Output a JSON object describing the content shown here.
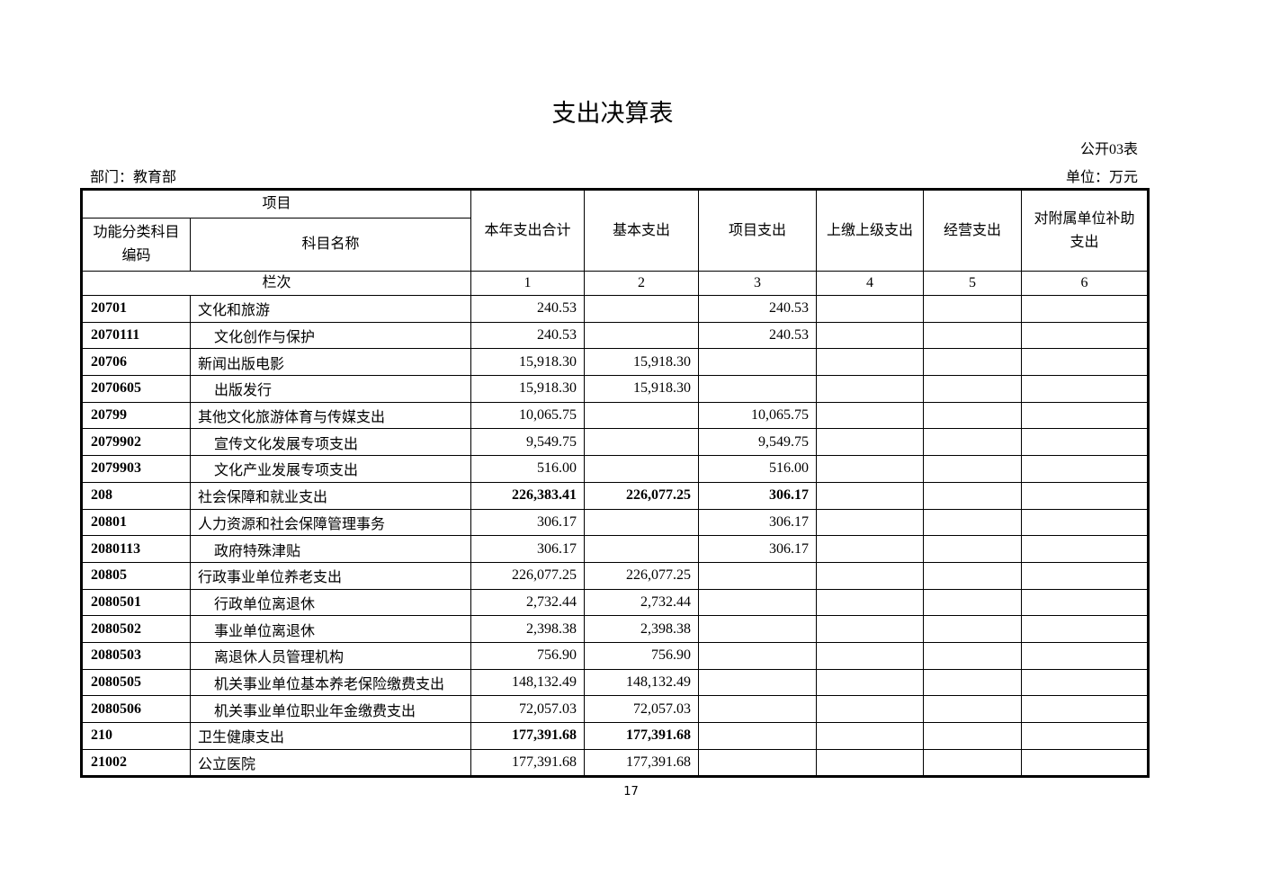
{
  "header": {
    "title": "支出决算表",
    "form_no": "公开03表",
    "department": "部门：教育部",
    "unit": "单位：万元"
  },
  "table": {
    "columns": {
      "item": "项目",
      "code": "功能分类科目编码",
      "name": "科目名称",
      "total": "本年支出合计",
      "basic": "基本支出",
      "project": "项目支出",
      "upper": "上缴上级支出",
      "business": "经营支出",
      "subsidy": "对附属单位补助支出",
      "row_label": "栏次",
      "col_numbers": [
        "1",
        "2",
        "3",
        "4",
        "5",
        "6"
      ]
    },
    "rows": [
      {
        "code": "20701",
        "name": "文化和旅游",
        "total": "240.53",
        "project": "240.53"
      },
      {
        "code": "2070111",
        "name": "文化创作与保护",
        "total": "240.53",
        "project": "240.53"
      },
      {
        "code": "20706",
        "name": "新闻出版电影",
        "total": "15,918.30",
        "basic": "15,918.30"
      },
      {
        "code": "2070605",
        "name": "出版发行",
        "total": "15,918.30",
        "basic": "15,918.30"
      },
      {
        "code": "20799",
        "name": "其他文化旅游体育与传媒支出",
        "total": "10,065.75",
        "project": "10,065.75"
      },
      {
        "code": "2079902",
        "name": "宣传文化发展专项支出",
        "total": "9,549.75",
        "project": "9,549.75"
      },
      {
        "code": "2079903",
        "name": "文化产业发展专项支出",
        "total": "516.00",
        "project": "516.00"
      },
      {
        "code": "208",
        "name": "社会保障和就业支出",
        "total": "226,383.41",
        "basic": "226,077.25",
        "project": "306.17"
      },
      {
        "code": "20801",
        "name": "人力资源和社会保障管理事务",
        "total": "306.17",
        "project": "306.17"
      },
      {
        "code": "2080113",
        "name": "政府特殊津贴",
        "total": "306.17",
        "project": "306.17"
      },
      {
        "code": "20805",
        "name": "行政事业单位养老支出",
        "total": "226,077.25",
        "basic": "226,077.25"
      },
      {
        "code": "2080501",
        "name": "行政单位离退休",
        "total": "2,732.44",
        "basic": "2,732.44"
      },
      {
        "code": "2080502",
        "name": "事业单位离退休",
        "total": "2,398.38",
        "basic": "2,398.38"
      },
      {
        "code": "2080503",
        "name": "离退休人员管理机构",
        "total": "756.90",
        "basic": "756.90"
      },
      {
        "code": "2080505",
        "name": "机关事业单位基本养老保险缴费支出",
        "total": "148,132.49",
        "basic": "148,132.49"
      },
      {
        "code": "2080506",
        "name": "机关事业单位职业年金缴费支出",
        "total": "72,057.03",
        "basic": "72,057.03"
      },
      {
        "code": "210",
        "name": "卫生健康支出",
        "total": "177,391.68",
        "basic": "177,391.68"
      },
      {
        "code": "21002",
        "name": "公立医院",
        "total": "177,391.68",
        "basic": "177,391.68"
      }
    ]
  },
  "footer": {
    "page": "17"
  }
}
